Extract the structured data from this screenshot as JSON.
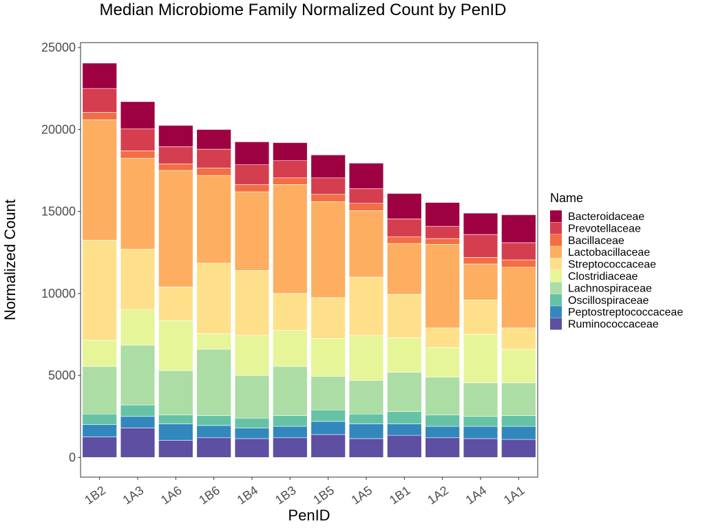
{
  "chart_data": {
    "type": "bar",
    "stacked": true,
    "title": "Median Microbiome Family Normalized Count by PenID",
    "xlabel": "PenID",
    "ylabel": "Normalized Count",
    "ylim": [
      -1200,
      25300
    ],
    "yticks": [
      0,
      5000,
      10000,
      15000,
      20000,
      25000
    ],
    "yticklabels": [
      "0",
      "5000",
      "10000",
      "15000",
      "20000",
      "25000"
    ],
    "grid": false,
    "legend": {
      "title": "Name",
      "position": "right"
    },
    "categories": [
      "1B2",
      "1A3",
      "1A6",
      "1B6",
      "1B4",
      "1B3",
      "1B5",
      "1A5",
      "1B1",
      "1A2",
      "1A4",
      "1A1"
    ],
    "series": [
      {
        "name": "Ruminococcaceae",
        "color": "#5E4FA2",
        "values": [
          1250,
          1800,
          1050,
          1200,
          1150,
          1200,
          1400,
          1150,
          1350,
          1200,
          1150,
          1100
        ]
      },
      {
        "name": "Peptostreptococcaceae",
        "color": "#3288BD",
        "values": [
          750,
          700,
          1000,
          750,
          650,
          700,
          800,
          900,
          700,
          700,
          750,
          800
        ]
      },
      {
        "name": "Oscillospiraceae",
        "color": "#66C2A5",
        "values": [
          650,
          700,
          550,
          600,
          600,
          650,
          700,
          600,
          750,
          700,
          600,
          650
        ]
      },
      {
        "name": "Lachnospiraceae",
        "color": "#ABDDA4",
        "values": [
          2900,
          3650,
          2700,
          4050,
          2600,
          3000,
          2050,
          2050,
          2400,
          2300,
          2050,
          2000
        ]
      },
      {
        "name": "Clostridiaceae",
        "color": "#E6F598",
        "values": [
          1600,
          2150,
          3050,
          950,
          2450,
          2200,
          2300,
          2750,
          2100,
          1800,
          2950,
          2050
        ]
      },
      {
        "name": "Streptococcaceae",
        "color": "#FEE08B",
        "values": [
          6100,
          3700,
          2050,
          4300,
          3950,
          2250,
          2500,
          3550,
          2650,
          1200,
          2100,
          1300
        ]
      },
      {
        "name": "Lactobacillaceae",
        "color": "#FDAE61",
        "values": [
          7350,
          5550,
          7100,
          5350,
          4800,
          6650,
          5850,
          4050,
          3100,
          5100,
          2200,
          3700
        ]
      },
      {
        "name": "Bacillaceae",
        "color": "#F46D43",
        "values": [
          450,
          450,
          400,
          450,
          450,
          400,
          450,
          450,
          400,
          350,
          400,
          450
        ]
      },
      {
        "name": "Prevotellaceae",
        "color": "#D53E4F",
        "values": [
          1450,
          1350,
          1050,
          1150,
          1200,
          1050,
          1000,
          900,
          1100,
          750,
          1400,
          1050
        ]
      },
      {
        "name": "Bacteroidaceae",
        "color": "#9E0142",
        "values": [
          1550,
          1650,
          1300,
          1200,
          1400,
          1100,
          1400,
          1550,
          1550,
          1450,
          1300,
          1700
        ]
      }
    ]
  }
}
